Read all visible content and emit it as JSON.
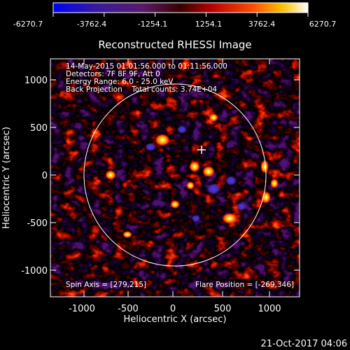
{
  "colorbar": {
    "ticks": [
      "-6270.7",
      "-3762.4",
      "-1254.1",
      "1254.1",
      "3762.4",
      "6270.7"
    ]
  },
  "plot": {
    "title": "Reconstructed RHESSI Image",
    "xlabel": "Heliocentric X (arcsec)",
    "ylabel": "Heliocentric Y (arcsec)",
    "x_ticks": [
      "-1000",
      "-500",
      "0",
      "500",
      "1000"
    ],
    "y_ticks": [
      "1000",
      "500",
      "0",
      "-500",
      "-1000"
    ],
    "info_lines": [
      "14-May-2015 01:01:56.000 to 01:11:56.000",
      "Detectors: 7F 8F 9F, Att 0",
      "Energy Range: 6.0 - 25.0 keV",
      "Back Projection    Total counts: 3.74E+04"
    ],
    "spin_axis": "Spin Axis = [279,215]",
    "flare_position": "Flare Position = [-269,346]"
  },
  "footer": {
    "timestamp": "21-Oct-2017 04:06"
  }
}
